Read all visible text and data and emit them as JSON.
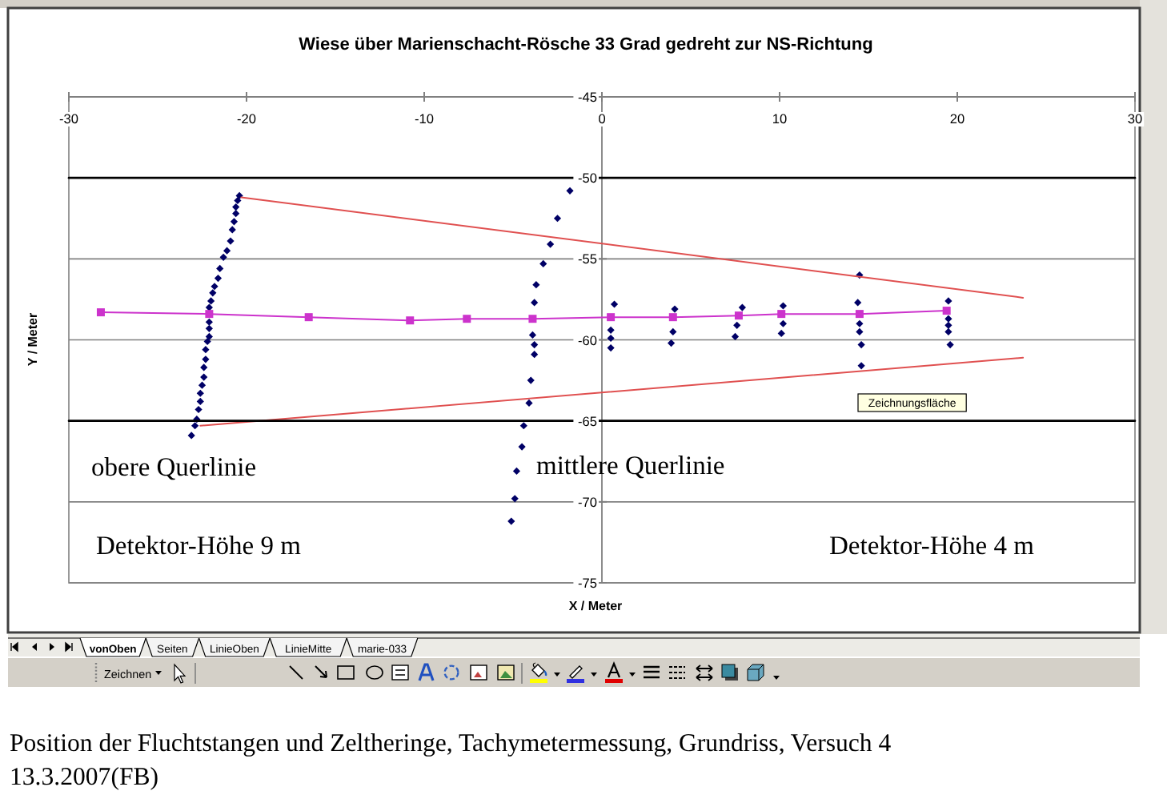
{
  "chart_data": {
    "type": "scatter",
    "title": "Wiese über Marienschacht-Rösche 33 Grad gedreht zur NS-Richtung",
    "xlabel": "X / Meter",
    "ylabel": "Y / Meter",
    "xlim": [
      -30,
      30
    ],
    "xticks": [
      -30,
      -20,
      -10,
      0,
      10,
      20,
      30
    ],
    "ylim": [
      -75,
      -45
    ],
    "yticks": [
      -45,
      -50,
      -55,
      -60,
      -65,
      -70,
      -75
    ],
    "grid": "y",
    "series": [
      {
        "type": "scatter",
        "color": "#000066",
        "marker": "diamond",
        "x": [
          -20.4,
          -20.5,
          -20.6,
          -20.6,
          -20.7,
          -20.8,
          -20.9,
          -21.1,
          -21.3,
          -21.5,
          -21.6,
          -21.8,
          -21.9,
          -22.0,
          -22.1,
          -22.1,
          -22.1,
          -22.1,
          -22.2,
          -22.3,
          -22.3,
          -22.4,
          -22.4,
          -22.5,
          -22.6,
          -22.6,
          -22.7,
          -22.8,
          -22.9,
          -23.1,
          -1.8,
          -2.5,
          -2.9,
          -3.3,
          -3.7,
          -3.8,
          -3.9,
          -3.8,
          -3.8,
          -4.0,
          -4.1,
          -4.4,
          -4.5,
          -4.8,
          -4.9,
          -5.1,
          0.7,
          0.5,
          0.5,
          0.5,
          4.1,
          4.0,
          3.9,
          7.9,
          7.6,
          7.5,
          10.2,
          10.2,
          10.1,
          14.5,
          14.4,
          14.5,
          14.5,
          14.6,
          14.6,
          19.5,
          19.5,
          19.5,
          19.5,
          19.6
        ],
        "values": [
          -51.1,
          -51.4,
          -51.8,
          -52.2,
          -52.7,
          -53.2,
          -53.9,
          -54.5,
          -54.9,
          -55.6,
          -56.2,
          -56.7,
          -57.1,
          -57.6,
          -58.0,
          -58.9,
          -59.3,
          -59.8,
          -60.1,
          -60.6,
          -61.2,
          -61.7,
          -62.3,
          -62.8,
          -63.3,
          -63.8,
          -64.3,
          -64.9,
          -65.3,
          -65.9,
          -50.8,
          -52.5,
          -54.1,
          -55.3,
          -56.6,
          -57.7,
          -59.7,
          -60.3,
          -60.9,
          -62.5,
          -63.9,
          -65.3,
          -66.6,
          -68.1,
          -69.8,
          -71.2,
          -57.8,
          -59.4,
          -59.9,
          -60.5,
          -58.1,
          -59.5,
          -60.2,
          -58.0,
          -59.1,
          -59.8,
          -57.9,
          -59.0,
          -59.6,
          -56.0,
          -57.7,
          -59.0,
          -59.5,
          -60.3,
          -61.6,
          -57.6,
          -58.7,
          -59.1,
          -59.5,
          -60.3
        ]
      },
      {
        "type": "line",
        "color": "#cc33cc",
        "marker": "square",
        "x": [
          -28.2,
          -22.1,
          -16.5,
          -10.8,
          -7.6,
          -3.9,
          0.5,
          4.0,
          7.7,
          10.1,
          14.5,
          19.4
        ],
        "values": [
          -58.3,
          -58.4,
          -58.6,
          -58.8,
          -58.7,
          -58.7,
          -58.6,
          -58.6,
          -58.5,
          -58.4,
          -58.4,
          -58.2
        ]
      },
      {
        "type": "line",
        "color": "#e05050",
        "marker": "none",
        "x": [
          -20.3,
          23.7
        ],
        "values": [
          -51.2,
          -57.4
        ]
      },
      {
        "type": "line",
        "color": "#e05050",
        "marker": "none",
        "x": [
          -22.6,
          23.7
        ],
        "values": [
          -65.3,
          -61.1
        ]
      },
      {
        "type": "line",
        "color": "#000000",
        "marker": "none",
        "x": [
          -30,
          30
        ],
        "values": [
          -50,
          -50
        ]
      },
      {
        "type": "line",
        "color": "#000000",
        "marker": "none",
        "x": [
          -30,
          30
        ],
        "values": [
          -65,
          -65
        ]
      }
    ],
    "annotations": [
      "obere Querlinie",
      "mittlere Querlinie",
      "Detektor-Höhe 9 m",
      "Detektor-Höhe 4 m",
      "Zeichnungsfläche",
      "Position der Fluchtstangen und Zeltheringe, Tachymetermessung, Grundriss, Versuch 4",
      "13.3.2007(FB)",
      "vonOben",
      "Seiten",
      "LinieOben",
      "LinieMitte",
      "marie-033",
      "Zeichnen"
    ]
  }
}
